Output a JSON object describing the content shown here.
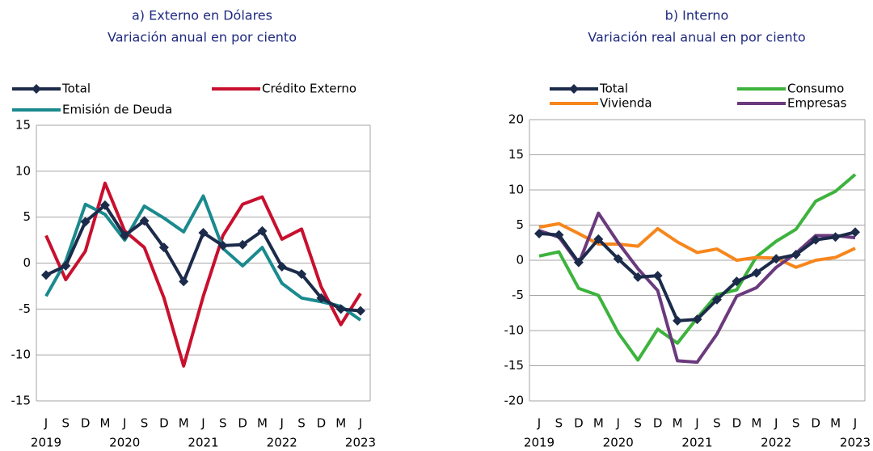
{
  "chart_data": [
    {
      "type": "line",
      "title": "a) Externo en Dólares",
      "subtitle": "Variación anual en por ciento",
      "categories": [
        "J",
        "S",
        "D",
        "M",
        "J",
        "S",
        "D",
        "M",
        "J",
        "S",
        "D",
        "M",
        "J",
        "S",
        "D",
        "M",
        "J"
      ],
      "years": [
        "2019",
        null,
        null,
        null,
        "2020",
        null,
        null,
        null,
        "2021",
        null,
        null,
        null,
        "2022",
        null,
        null,
        null,
        "2023"
      ],
      "ylim": [
        -15,
        15
      ],
      "yticks": [
        -15,
        -10,
        -5,
        0,
        5,
        10,
        15
      ],
      "grid": true,
      "series": [
        {
          "name": "Total",
          "color": "#1c2b4a",
          "marker": "diamond",
          "values": [
            -1.3,
            -0.3,
            4.5,
            6.3,
            3.0,
            4.6,
            1.7,
            -2.0,
            3.3,
            1.9,
            2.0,
            3.5,
            -0.4,
            -1.2,
            -3.8,
            -5.0,
            -5.2
          ]
        },
        {
          "name": "Crédito Externo",
          "color": "#c8102e",
          "values": [
            3.0,
            -1.8,
            1.3,
            8.7,
            3.5,
            1.7,
            -3.8,
            -11.2,
            -3.6,
            3.0,
            6.4,
            7.2,
            2.6,
            3.7,
            -2.6,
            -6.7,
            -3.3
          ]
        },
        {
          "name": "Emisión de Deuda",
          "color": "#1a8a8f",
          "values": [
            -3.6,
            0.2,
            6.4,
            5.3,
            2.5,
            6.2,
            4.9,
            3.4,
            7.3,
            1.6,
            -0.3,
            1.7,
            -2.2,
            -3.8,
            -4.2,
            -4.7,
            -6.2
          ]
        }
      ]
    },
    {
      "type": "line",
      "title": "b) Interno",
      "subtitle": "Variación real anual en por ciento",
      "categories": [
        "J",
        "S",
        "D",
        "M",
        "J",
        "S",
        "D",
        "M",
        "J",
        "S",
        "D",
        "M",
        "J",
        "S",
        "D",
        "M",
        "J"
      ],
      "years": [
        "2019",
        null,
        null,
        null,
        "2020",
        null,
        null,
        null,
        "2021",
        null,
        null,
        null,
        "2022",
        null,
        null,
        null,
        "2023"
      ],
      "ylim": [
        -20,
        20
      ],
      "yticks": [
        -20,
        -15,
        -10,
        -5,
        0,
        5,
        10,
        15,
        20
      ],
      "grid": true,
      "series": [
        {
          "name": "Total",
          "color": "#1c2b4a",
          "marker": "diamond",
          "values": [
            3.8,
            3.6,
            -0.3,
            3.0,
            0.2,
            -2.4,
            -2.2,
            -8.6,
            -8.4,
            -5.6,
            -3.0,
            -1.8,
            0.2,
            0.8,
            2.9,
            3.3,
            4.0
          ]
        },
        {
          "name": "Consumo",
          "color": "#3db33d",
          "values": [
            0.6,
            1.2,
            -4.0,
            -5.0,
            -10.3,
            -14.2,
            -9.8,
            -11.8,
            -8.2,
            -4.9,
            -4.2,
            0.5,
            2.7,
            4.4,
            8.4,
            9.8,
            12.2
          ]
        },
        {
          "name": "Vivienda",
          "color": "#f7861c",
          "values": [
            4.7,
            5.2,
            3.8,
            2.3,
            2.3,
            2.0,
            4.5,
            2.6,
            1.1,
            1.6,
            0.0,
            0.4,
            0.3,
            -1.0,
            0.0,
            0.4,
            1.7
          ]
        },
        {
          "name": "Empresas",
          "color": "#6b3a7d",
          "values": [
            4.2,
            3.3,
            -0.5,
            6.7,
            2.5,
            -1.2,
            -4.3,
            -14.3,
            -14.5,
            -10.5,
            -5.1,
            -3.9,
            -1.0,
            1.0,
            3.5,
            3.5,
            3.2
          ]
        }
      ]
    }
  ]
}
